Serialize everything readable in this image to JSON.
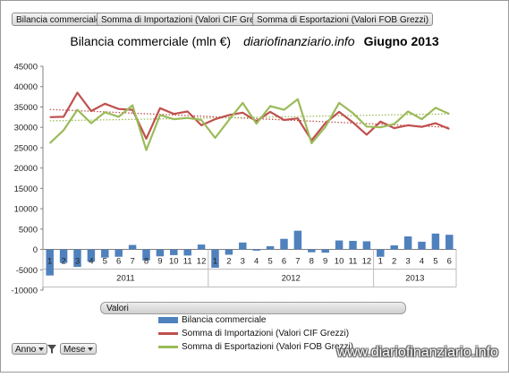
{
  "header": {
    "field_buttons": [
      "Bilancia commerciale",
      "Somma di Importazioni (Valori CIF Grezzi)",
      "Somma di Esportazioni (Valori FOB Grezzi)"
    ]
  },
  "chart_data": {
    "type": "bar+line",
    "title": "Bilancia commerciale (mln €)",
    "title_site": "diariofinanziario.info",
    "title_period": "Giugno 2013",
    "xlabel": "",
    "ylabel": "",
    "ylim": [
      -10000,
      45000
    ],
    "yticks": [
      -10000,
      -5000,
      0,
      5000,
      10000,
      15000,
      20000,
      25000,
      30000,
      35000,
      40000,
      45000
    ],
    "grid": false,
    "legend_position": "bottom",
    "groups": [
      {
        "year": "2011",
        "months": [
          "1",
          "2",
          "3",
          "4",
          "5",
          "6",
          "7",
          "8",
          "9",
          "10",
          "11",
          "12"
        ]
      },
      {
        "year": "2012",
        "months": [
          "1",
          "2",
          "3",
          "4",
          "5",
          "6",
          "7",
          "8",
          "9",
          "10",
          "11",
          "12"
        ]
      },
      {
        "year": "2013",
        "months": [
          "1",
          "2",
          "3",
          "4",
          "5",
          "6"
        ]
      }
    ],
    "series": [
      {
        "name": "Bilancia commerciale",
        "kind": "bar",
        "color": "#4f81bd",
        "values": [
          -6400,
          -3300,
          -4300,
          -3000,
          -2000,
          -1800,
          1100,
          -2700,
          -1700,
          -1400,
          -1500,
          1200,
          -4500,
          -1300,
          1700,
          -300,
          800,
          2600,
          4600,
          -700,
          -800,
          2200,
          2100,
          2000,
          -1800,
          1000,
          3200,
          1900,
          3900,
          3600
        ]
      },
      {
        "name": "Somma di Importazioni (Valori CIF Grezzi)",
        "kind": "line",
        "color": "#c0504d",
        "values": [
          32500,
          32600,
          38500,
          34000,
          35800,
          34500,
          34300,
          27200,
          34700,
          33300,
          33900,
          30500,
          32000,
          33000,
          33600,
          31500,
          33800,
          31800,
          32200,
          26800,
          31000,
          33800,
          31200,
          28200,
          31400,
          29800,
          30500,
          30100,
          31000,
          29600
        ]
      },
      {
        "name": "Somma di Esportazioni (Valori FOB Grezzi)",
        "kind": "line",
        "color": "#9bbb59",
        "values": [
          26100,
          29300,
          34300,
          31000,
          33700,
          32600,
          35400,
          24400,
          33000,
          32000,
          32300,
          31800,
          27400,
          31800,
          36000,
          30900,
          35200,
          34300,
          36900,
          26100,
          30100,
          36000,
          33500,
          30200,
          30000,
          30800,
          33900,
          32000,
          34800,
          33300
        ]
      }
    ],
    "trendlines": [
      {
        "series": "Somma di Importazioni (Valori CIF Grezzi)",
        "color": "#c0504d",
        "start": 34400,
        "end": 30000
      },
      {
        "series": "Somma di Esportazioni (Valori FOB Grezzi)",
        "color": "#9bbb59",
        "start": 31600,
        "end": 33300
      }
    ]
  },
  "values_bar": {
    "label": "Valori"
  },
  "filters": [
    {
      "label": "Anno"
    },
    {
      "label": "Mese"
    }
  ],
  "watermark": "www.diariofinanziario.info"
}
